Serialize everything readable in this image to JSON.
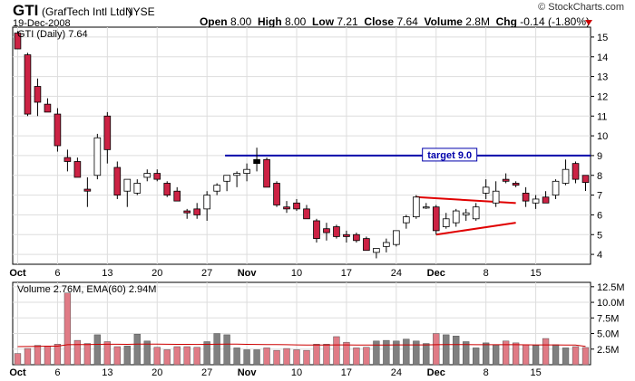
{
  "header": {
    "symbol": "GTI",
    "company": "(GrafTech Intl Ltd.)",
    "exchange": "NYSE",
    "date": "19-Dec-2008",
    "brand": "© StockCharts.com",
    "open_label": "Open",
    "open": "8.00",
    "high_label": "High",
    "high": "8.00",
    "low_label": "Low",
    "low": "7.21",
    "close_label": "Close",
    "close": "7.64",
    "volume_label": "Volume",
    "volume": "2.8M",
    "chg_label": "Chg",
    "chg": "-0.14 (-1.80%)"
  },
  "colors": {
    "up_body": "#ffffff",
    "down_body": "#cc2244",
    "candle_outline": "#000000",
    "vol_up": "#808080",
    "vol_down": "#e07b86",
    "target_line": "#0000aa",
    "trendline": "#e00000",
    "ema": "#cc0000",
    "grid": "#dddddd"
  },
  "chart_data": [
    {
      "type": "candlestick",
      "legend": "GTI (Daily) 7.64",
      "ylim": [
        3.5,
        15.5
      ],
      "yticks": [
        4,
        5,
        6,
        7,
        8,
        9,
        10,
        11,
        12,
        13,
        14,
        15
      ],
      "x_labels": [
        "Oct",
        "6",
        "13",
        "20",
        "27",
        "Nov",
        "10",
        "17",
        "24",
        "Dec",
        "8",
        "15"
      ],
      "x_label_index": [
        0,
        4,
        9,
        14,
        19,
        23,
        28,
        33,
        38,
        42,
        47,
        52
      ],
      "annotation": {
        "label": "target 9.0",
        "value": 9.0
      },
      "ohlc": [
        [
          15.2,
          15.3,
          14.4,
          14.4
        ],
        [
          14.1,
          14.2,
          11.0,
          11.1
        ],
        [
          12.5,
          12.9,
          11.0,
          11.7
        ],
        [
          11.6,
          11.9,
          11.2,
          11.2
        ],
        [
          11.1,
          11.4,
          9.2,
          9.5
        ],
        [
          8.9,
          9.3,
          8.2,
          8.7
        ],
        [
          8.7,
          8.9,
          7.9,
          7.9
        ],
        [
          7.3,
          7.9,
          6.4,
          7.2
        ],
        [
          8.0,
          10.1,
          7.8,
          9.9
        ],
        [
          11.0,
          11.2,
          8.6,
          9.3
        ],
        [
          8.4,
          8.7,
          6.8,
          7.0
        ],
        [
          7.2,
          7.8,
          6.4,
          7.8
        ],
        [
          7.1,
          7.8,
          7.0,
          7.6
        ],
        [
          7.9,
          8.3,
          7.7,
          8.1
        ],
        [
          8.1,
          8.3,
          7.7,
          7.8
        ],
        [
          7.6,
          7.7,
          6.9,
          7.0
        ],
        [
          7.2,
          7.4,
          6.7,
          6.7
        ],
        [
          6.2,
          6.3,
          5.8,
          6.1
        ],
        [
          6.3,
          6.6,
          5.8,
          6.0
        ],
        [
          6.3,
          7.2,
          5.7,
          7.0
        ],
        [
          7.2,
          7.6,
          7.0,
          7.5
        ],
        [
          7.7,
          8.0,
          7.2,
          8.0
        ],
        [
          8.0,
          8.2,
          7.4,
          8.1
        ],
        [
          8.1,
          8.6,
          7.7,
          8.3
        ],
        [
          8.6,
          9.4,
          8.2,
          8.8
        ],
        [
          8.8,
          8.9,
          7.4,
          7.4
        ],
        [
          7.6,
          7.7,
          6.4,
          6.5
        ],
        [
          6.4,
          6.7,
          6.1,
          6.3
        ],
        [
          6.6,
          6.8,
          6.2,
          6.3
        ],
        [
          6.3,
          6.5,
          5.8,
          5.8
        ],
        [
          5.7,
          5.8,
          4.6,
          4.8
        ],
        [
          5.3,
          5.6,
          4.7,
          5.1
        ],
        [
          5.4,
          5.5,
          4.8,
          4.9
        ],
        [
          5.0,
          5.2,
          4.6,
          4.9
        ],
        [
          5.0,
          5.1,
          4.6,
          4.7
        ],
        [
          4.8,
          4.9,
          4.2,
          4.2
        ],
        [
          4.1,
          4.3,
          3.8,
          4.3
        ],
        [
          4.4,
          4.8,
          4.1,
          4.6
        ],
        [
          4.5,
          5.2,
          4.4,
          5.2
        ],
        [
          5.6,
          6.0,
          5.3,
          5.9
        ],
        [
          5.9,
          7.0,
          5.8,
          6.9
        ],
        [
          6.4,
          6.6,
          6.3,
          6.4
        ],
        [
          6.4,
          6.5,
          5.0,
          5.2
        ],
        [
          5.4,
          6.1,
          5.3,
          5.8
        ],
        [
          5.6,
          6.3,
          5.4,
          6.2
        ],
        [
          6.0,
          6.3,
          5.7,
          6.1
        ],
        [
          5.8,
          6.6,
          5.7,
          6.4
        ],
        [
          7.1,
          7.8,
          6.8,
          7.4
        ],
        [
          6.6,
          7.7,
          6.4,
          7.2
        ],
        [
          7.8,
          8.1,
          7.6,
          7.7
        ],
        [
          7.6,
          7.7,
          7.4,
          7.5
        ],
        [
          7.1,
          7.4,
          6.4,
          6.7
        ],
        [
          6.6,
          7.0,
          6.3,
          6.8
        ],
        [
          6.9,
          7.2,
          6.6,
          6.6
        ],
        [
          7.0,
          7.8,
          6.8,
          7.7
        ],
        [
          7.6,
          8.8,
          7.5,
          8.3
        ],
        [
          8.6,
          8.7,
          7.6,
          7.8
        ],
        [
          8.0,
          8.0,
          7.21,
          7.64
        ]
      ],
      "target_line": {
        "x_start_index": 23,
        "value": 9.0
      },
      "triangle_upper": [
        [
          40,
          6.9
        ],
        [
          50,
          6.6
        ]
      ],
      "triangle_lower": [
        [
          42,
          5.0
        ],
        [
          50,
          5.6
        ]
      ]
    },
    {
      "type": "bar",
      "legend": "Volume 2.76M, EMA(60) 2.94M",
      "ylim": [
        0,
        13.2
      ],
      "yticks": [
        2.5,
        5.0,
        7.5,
        10.0,
        12.5
      ],
      "ytick_labels": [
        "2.5M",
        "5.0M",
        "7.5M",
        "10.0M",
        "12.5M"
      ],
      "x_labels": [
        "Oct",
        "6",
        "13",
        "20",
        "27",
        "Nov",
        "10",
        "17",
        "24",
        "Dec",
        "8",
        "15"
      ],
      "x_label_index": [
        0,
        4,
        9,
        14,
        19,
        23,
        28,
        33,
        38,
        42,
        47,
        52
      ],
      "values": [
        1.8,
        2.6,
        3.1,
        3.0,
        3.3,
        11.5,
        3.9,
        3.4,
        4.8,
        3.7,
        2.9,
        3.0,
        4.9,
        3.8,
        2.8,
        2.4,
        2.9,
        2.9,
        2.8,
        3.7,
        5.0,
        4.8,
        2.7,
        2.4,
        2.4,
        2.7,
        2.3,
        2.6,
        2.4,
        2.3,
        3.3,
        3.3,
        4.5,
        3.6,
        2.7,
        2.8,
        3.8,
        3.9,
        3.8,
        4.1,
        3.8,
        3.4,
        5.0,
        4.8,
        4.6,
        3.7,
        2.7,
        3.5,
        3.2,
        3.8,
        3.5,
        3.2,
        3.1,
        4.2,
        3.2,
        2.7,
        2.9,
        2.76
      ],
      "ema": [
        2.9,
        2.92,
        2.95,
        2.97,
        2.98,
        3.2,
        3.22,
        3.23,
        3.27,
        3.28,
        3.28,
        3.27,
        3.3,
        3.31,
        3.3,
        3.28,
        3.27,
        3.26,
        3.25,
        3.26,
        3.28,
        3.3,
        3.29,
        3.27,
        3.25,
        3.24,
        3.22,
        3.2,
        3.18,
        3.16,
        3.16,
        3.15,
        3.17,
        3.17,
        3.16,
        3.15,
        3.16,
        3.16,
        3.17,
        3.18,
        3.18,
        3.18,
        3.2,
        3.22,
        3.23,
        3.23,
        3.21,
        3.21,
        3.2,
        3.2,
        3.2,
        3.19,
        3.18,
        3.18,
        3.18,
        3.16,
        3.15,
        2.94
      ]
    }
  ]
}
